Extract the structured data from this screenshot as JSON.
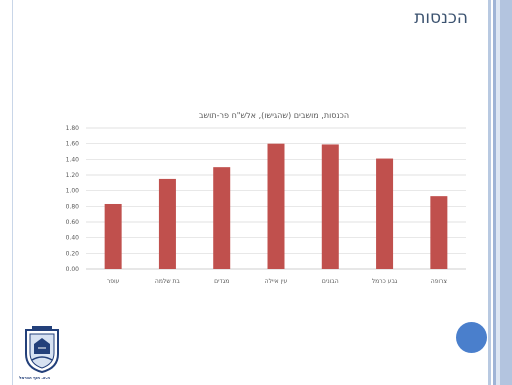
{
  "slide": {
    "title": "הכנסות"
  },
  "colors": {
    "bar": "#c0504d",
    "grid": "#d9d9d9",
    "accent_circle": "#4a7fcc"
  },
  "logo": {
    "caption": "ה.א. חוף הכרמל"
  },
  "chart_data": {
    "type": "bar",
    "title": "הכנסות, מושבים (שהגישו), אלש\"ח פר-תושב",
    "categories": [
      "עופר",
      "בת שלמה",
      "מגדים",
      "עין איילה",
      "הבונים",
      "גבע כרמל",
      "צרופה"
    ],
    "values": [
      0.83,
      1.15,
      1.3,
      1.6,
      1.59,
      1.41,
      0.93
    ],
    "yticks": [
      "0.00",
      "0.20",
      "0.40",
      "0.60",
      "0.80",
      "1.00",
      "1.20",
      "1.40",
      "1.60",
      "1.80"
    ],
    "ylim": [
      0,
      1.8
    ],
    "grid": true,
    "xlabel": "",
    "ylabel": ""
  }
}
